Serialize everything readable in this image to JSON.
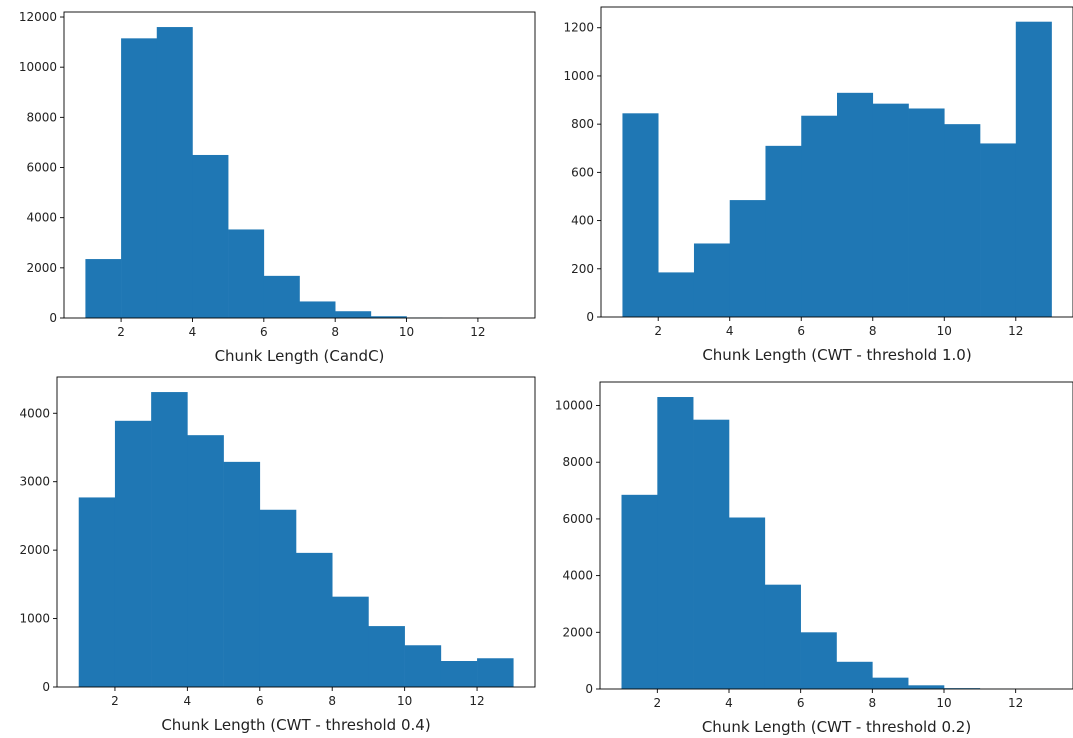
{
  "chart_data": [
    {
      "type": "bar",
      "xlabel": "Chunk Length (CandC)",
      "ylabel": "",
      "bin_edges": [
        1,
        2,
        3,
        4,
        5,
        6,
        7,
        8,
        9,
        10,
        11,
        12,
        13
      ],
      "values": [
        2350,
        11150,
        11600,
        6500,
        3530,
        1680,
        660,
        270,
        70,
        20,
        5,
        3
      ],
      "xlim": [
        0.4,
        13.6
      ],
      "ylim": [
        0,
        12200
      ],
      "xticks": [
        "2",
        "4",
        "6",
        "8",
        "10",
        "12"
      ],
      "yticks": [
        "0",
        "2000",
        "4000",
        "6000",
        "8000",
        "10000",
        "12000"
      ],
      "color": "#1f77b4"
    },
    {
      "type": "bar",
      "xlabel": "Chunk Length (CWT - threshold 1.0)",
      "ylabel": "",
      "bin_edges": [
        1,
        2,
        3,
        4,
        5,
        6,
        7,
        8,
        9,
        10,
        11,
        12,
        13
      ],
      "values": [
        845,
        185,
        305,
        485,
        710,
        835,
        930,
        885,
        865,
        800,
        720,
        1225
      ],
      "xlim": [
        0.4,
        13.6
      ],
      "ylim": [
        0,
        1286
      ],
      "xticks": [
        "2",
        "4",
        "6",
        "8",
        "10",
        "12"
      ],
      "yticks": [
        "0",
        "200",
        "400",
        "600",
        "800",
        "1000",
        "1200"
      ],
      "color": "#1f77b4"
    },
    {
      "type": "bar",
      "xlabel": "Chunk Length (CWT - threshold 0.4)",
      "ylabel": "",
      "bin_edges": [
        1,
        2,
        3,
        4,
        5,
        6,
        7,
        8,
        9,
        10,
        11,
        12,
        13
      ],
      "values": [
        2770,
        3890,
        4310,
        3680,
        3290,
        2590,
        1960,
        1320,
        890,
        610,
        380,
        420
      ],
      "xlim": [
        0.4,
        13.6
      ],
      "ylim": [
        0,
        4530
      ],
      "xticks": [
        "2",
        "4",
        "6",
        "8",
        "10",
        "12"
      ],
      "yticks": [
        "0",
        "1000",
        "2000",
        "3000",
        "4000"
      ],
      "color": "#1f77b4"
    },
    {
      "type": "bar",
      "xlabel": "Chunk Length (CWT - threshold 0.2)",
      "ylabel": "",
      "bin_edges": [
        1,
        2,
        3,
        4,
        5,
        6,
        7,
        8,
        9,
        10,
        11,
        12,
        13
      ],
      "values": [
        6850,
        10300,
        9500,
        6050,
        3680,
        2000,
        960,
        400,
        130,
        30,
        5,
        2
      ],
      "xlim": [
        0.4,
        13.6
      ],
      "ylim": [
        0,
        10830
      ],
      "xticks": [
        "2",
        "4",
        "6",
        "8",
        "10",
        "12"
      ],
      "yticks": [
        "0",
        "2000",
        "4000",
        "6000",
        "8000",
        "10000"
      ],
      "color": "#1f77b4"
    }
  ]
}
